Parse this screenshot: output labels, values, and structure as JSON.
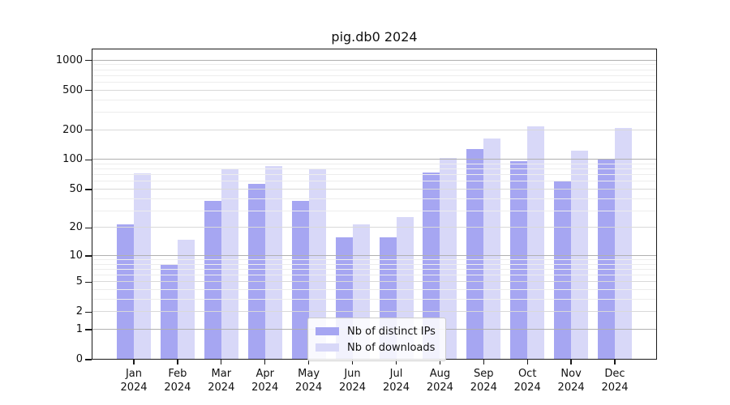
{
  "title": "pig.db0 2024",
  "chart_data": {
    "type": "bar",
    "title": "pig.db0 2024",
    "categories": [
      "Jan 2024",
      "Feb 2024",
      "Mar 2024",
      "Apr 2024",
      "May 2024",
      "Jun 2024",
      "Jul 2024",
      "Aug 2024",
      "Sep 2024",
      "Oct 2024",
      "Nov 2024",
      "Dec 2024"
    ],
    "series": [
      {
        "name": "Nb of distinct IPs",
        "color": "#a6a6f2",
        "values": [
          22,
          8,
          38,
          57,
          38,
          16,
          16,
          75,
          130,
          97,
          62,
          100
        ]
      },
      {
        "name": "Nb of downloads",
        "color": "#d8d8f8",
        "values": [
          73,
          15,
          80,
          87,
          82,
          22,
          26,
          105,
          165,
          218,
          124,
          210
        ]
      }
    ],
    "xlabel": "",
    "ylabel": "",
    "yscale": "log1p",
    "yticks": [
      0,
      1,
      2,
      5,
      10,
      20,
      50,
      100,
      200,
      500,
      1000
    ],
    "ylim": [
      0,
      1320
    ],
    "grid": "on",
    "legend_position": "lower-center"
  },
  "colors": {
    "bar_distinct_ips": "#a6a6f2",
    "bar_downloads": "#d8d8f8",
    "major_grid": "#b0b0b0",
    "mid_grid": "#d9d9d9",
    "minor_grid": "#ededed",
    "spine": "#1a1a1a",
    "background": "#ffffff"
  }
}
